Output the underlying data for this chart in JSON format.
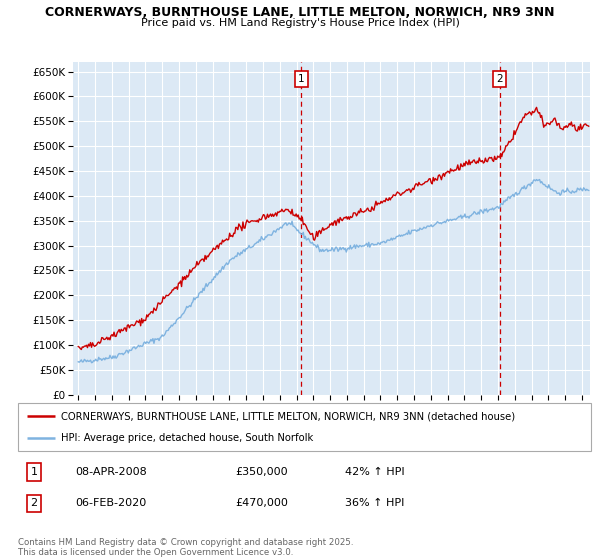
{
  "title1": "CORNERWAYS, BURNTHOUSE LANE, LITTLE MELTON, NORWICH, NR9 3NN",
  "title2": "Price paid vs. HM Land Registry's House Price Index (HPI)",
  "ylabel_ticks": [
    "£0",
    "£50K",
    "£100K",
    "£150K",
    "£200K",
    "£250K",
    "£300K",
    "£350K",
    "£400K",
    "£450K",
    "£500K",
    "£550K",
    "£600K",
    "£650K"
  ],
  "ytick_values": [
    0,
    50000,
    100000,
    150000,
    200000,
    250000,
    300000,
    350000,
    400000,
    450000,
    500000,
    550000,
    600000,
    650000
  ],
  "ylim": [
    0,
    670000
  ],
  "xlim_start": 1994.7,
  "xlim_end": 2025.5,
  "xticks": [
    1995,
    1996,
    1997,
    1998,
    1999,
    2000,
    2001,
    2002,
    2003,
    2004,
    2005,
    2006,
    2007,
    2008,
    2009,
    2010,
    2011,
    2012,
    2013,
    2014,
    2015,
    2016,
    2017,
    2018,
    2019,
    2020,
    2021,
    2022,
    2023,
    2024,
    2025
  ],
  "bg_color": "#dce9f5",
  "grid_color": "#ffffff",
  "line1_color": "#cc0000",
  "line2_color": "#7fb3e0",
  "vline_color": "#cc0000",
  "marker1_x": 2008.27,
  "marker2_x": 2020.09,
  "legend1": "CORNERWAYS, BURNTHOUSE LANE, LITTLE MELTON, NORWICH, NR9 3NN (detached house)",
  "legend2": "HPI: Average price, detached house, South Norfolk",
  "note1_label": "1",
  "note1_date": "08-APR-2008",
  "note1_price": "£350,000",
  "note1_pct": "42% ↑ HPI",
  "note2_label": "2",
  "note2_date": "06-FEB-2020",
  "note2_price": "£470,000",
  "note2_pct": "36% ↑ HPI",
  "footer": "Contains HM Land Registry data © Crown copyright and database right 2025.\nThis data is licensed under the Open Government Licence v3.0."
}
